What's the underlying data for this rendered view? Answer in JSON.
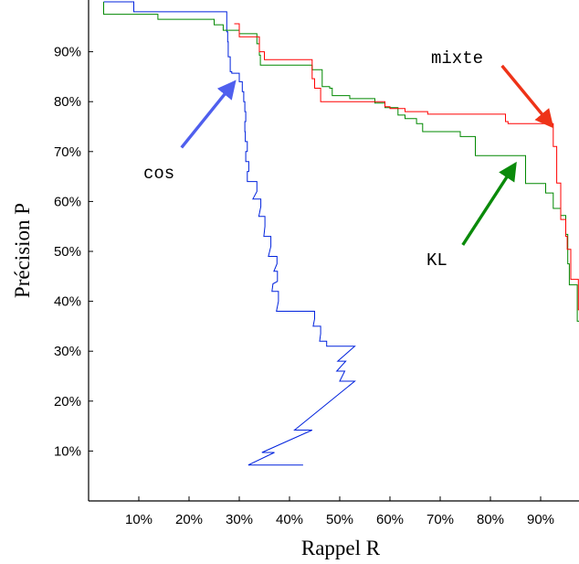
{
  "chart_data": {
    "type": "line",
    "title": "",
    "xlabel": "Rappel R",
    "ylabel": "Précision P",
    "xlim": [
      0,
      98
    ],
    "ylim": [
      0,
      100
    ],
    "xticks": [
      {
        "value": 10,
        "label": "10%"
      },
      {
        "value": 20,
        "label": "20%"
      },
      {
        "value": 30,
        "label": "30%"
      },
      {
        "value": 40,
        "label": "40%"
      },
      {
        "value": 50,
        "label": "50%"
      },
      {
        "value": 60,
        "label": "60%"
      },
      {
        "value": 70,
        "label": "70%"
      },
      {
        "value": 80,
        "label": "80%"
      },
      {
        "value": 90,
        "label": "90%"
      }
    ],
    "yticks": [
      {
        "value": 10,
        "label": "10%"
      },
      {
        "value": 20,
        "label": "20%"
      },
      {
        "value": 30,
        "label": "30%"
      },
      {
        "value": 40,
        "label": "40%"
      },
      {
        "value": 50,
        "label": "50%"
      },
      {
        "value": 60,
        "label": "60%"
      },
      {
        "value": 70,
        "label": "70%"
      },
      {
        "value": 80,
        "label": "80%"
      },
      {
        "value": 90,
        "label": "90%"
      }
    ],
    "grid": false,
    "legend": "none",
    "series": [
      {
        "name": "cos",
        "color": "#0022dd",
        "points": [
          [
            3,
            100
          ],
          [
            9,
            100
          ],
          [
            9,
            98
          ],
          [
            27.5,
            98
          ],
          [
            27.5,
            96
          ],
          [
            27.5,
            94
          ],
          [
            27.7,
            94
          ],
          [
            27.7,
            92
          ],
          [
            27.8,
            92
          ],
          [
            27.8,
            89
          ],
          [
            28.2,
            89
          ],
          [
            28.2,
            86
          ],
          [
            28.5,
            86
          ],
          [
            28.5,
            85.7
          ],
          [
            30,
            85.7
          ],
          [
            30,
            84
          ],
          [
            30.6,
            84
          ],
          [
            30.6,
            82
          ],
          [
            30.9,
            82
          ],
          [
            30.9,
            80
          ],
          [
            31.1,
            80
          ],
          [
            31.1,
            78
          ],
          [
            31.3,
            78
          ],
          [
            31.3,
            76
          ],
          [
            31.1,
            76
          ],
          [
            31.1,
            74
          ],
          [
            31.2,
            74
          ],
          [
            31.2,
            72
          ],
          [
            31.6,
            72
          ],
          [
            31.6,
            70
          ],
          [
            31.3,
            70
          ],
          [
            31.3,
            68
          ],
          [
            31.9,
            68
          ],
          [
            31.9,
            66
          ],
          [
            31.6,
            66
          ],
          [
            31.6,
            64
          ],
          [
            33.5,
            64
          ],
          [
            33.5,
            62
          ],
          [
            32.7,
            60.5
          ],
          [
            34.3,
            60.5
          ],
          [
            34.3,
            59
          ],
          [
            33.9,
            57
          ],
          [
            35.1,
            57
          ],
          [
            35.1,
            55
          ],
          [
            34.9,
            53
          ],
          [
            36.3,
            53
          ],
          [
            36.3,
            51
          ],
          [
            35.8,
            49
          ],
          [
            37.5,
            49
          ],
          [
            37.5,
            47.5
          ],
          [
            36.9,
            46
          ],
          [
            37.6,
            46
          ],
          [
            37.6,
            44
          ],
          [
            36.7,
            43.5
          ],
          [
            36.5,
            42
          ],
          [
            37.8,
            42
          ],
          [
            37.8,
            40
          ],
          [
            37.4,
            38
          ],
          [
            45,
            38
          ],
          [
            45,
            36.5
          ],
          [
            44.7,
            35
          ],
          [
            46.2,
            35
          ],
          [
            46.2,
            33.5
          ],
          [
            46,
            32
          ],
          [
            47.4,
            32
          ],
          [
            47.4,
            31
          ],
          [
            48.6,
            31
          ],
          [
            53,
            31
          ],
          [
            49.6,
            28
          ],
          [
            51.2,
            28
          ],
          [
            49.4,
            26
          ],
          [
            51,
            26
          ],
          [
            50,
            24
          ],
          [
            53,
            24
          ],
          [
            41,
            14.2
          ],
          [
            44.5,
            14.2
          ],
          [
            34.5,
            9.7
          ],
          [
            37,
            9.7
          ],
          [
            31.8,
            7.2
          ],
          [
            42.7,
            7.2
          ]
        ]
      },
      {
        "name": "KL",
        "color": "#008800",
        "points": [
          [
            3,
            100
          ],
          [
            3,
            97.5
          ],
          [
            13.8,
            97.5
          ],
          [
            13.8,
            96.5
          ],
          [
            25,
            96.5
          ],
          [
            25,
            95.4
          ],
          [
            26.8,
            95.4
          ],
          [
            26.8,
            94.3
          ],
          [
            30,
            94.3
          ],
          [
            30,
            93.6
          ],
          [
            33.5,
            93.6
          ],
          [
            33.5,
            91.6
          ],
          [
            34,
            91.6
          ],
          [
            34,
            89.3
          ],
          [
            34.2,
            89.3
          ],
          [
            34.2,
            87.3
          ],
          [
            44.5,
            87.3
          ],
          [
            44.5,
            86.4
          ],
          [
            46.5,
            86.4
          ],
          [
            46.5,
            84
          ],
          [
            46.5,
            83
          ],
          [
            48,
            83
          ],
          [
            48,
            82.7
          ],
          [
            48.5,
            82.7
          ],
          [
            48.5,
            81.2
          ],
          [
            52,
            81.2
          ],
          [
            52,
            80.6
          ],
          [
            57,
            80.6
          ],
          [
            57,
            79.7
          ],
          [
            59,
            79.7
          ],
          [
            59,
            78.8
          ],
          [
            61.6,
            78.8
          ],
          [
            61.6,
            77.3
          ],
          [
            63,
            77.3
          ],
          [
            63,
            76.6
          ],
          [
            65.3,
            76.6
          ],
          [
            65.3,
            75.6
          ],
          [
            66.5,
            75.6
          ],
          [
            66.5,
            74
          ],
          [
            74,
            74
          ],
          [
            74,
            73
          ],
          [
            77,
            73
          ],
          [
            77,
            69.2
          ],
          [
            87,
            69.2
          ],
          [
            87,
            63.6
          ],
          [
            91,
            63.6
          ],
          [
            91,
            61.7
          ],
          [
            92.5,
            61.7
          ],
          [
            92.5,
            58.6
          ],
          [
            94,
            58.6
          ],
          [
            94,
            57.2
          ],
          [
            95,
            57.2
          ],
          [
            95,
            53.4
          ],
          [
            95.4,
            53.4
          ],
          [
            95.4,
            47.5
          ],
          [
            95.7,
            47.5
          ],
          [
            95.7,
            43.3
          ],
          [
            97.3,
            43.3
          ],
          [
            97.3,
            36
          ],
          [
            98,
            36
          ]
        ]
      },
      {
        "name": "mixte",
        "color": "#ff0000",
        "points": [
          [
            29,
            95.6
          ],
          [
            30,
            95.6
          ],
          [
            30,
            93
          ],
          [
            34,
            93
          ],
          [
            34,
            90
          ],
          [
            35,
            90
          ],
          [
            35,
            88.4
          ],
          [
            44.5,
            88.4
          ],
          [
            44.5,
            84.6
          ],
          [
            45,
            84.6
          ],
          [
            45,
            82.7
          ],
          [
            46.2,
            82.7
          ],
          [
            46.2,
            80
          ],
          [
            59,
            80
          ],
          [
            59,
            79
          ],
          [
            60,
            79
          ],
          [
            60,
            78.6
          ],
          [
            63,
            78.6
          ],
          [
            63,
            78
          ],
          [
            67.5,
            78
          ],
          [
            67.5,
            77.5
          ],
          [
            83,
            77.5
          ],
          [
            83,
            76
          ],
          [
            83.5,
            76
          ],
          [
            83.5,
            75.6
          ],
          [
            92.5,
            75.6
          ],
          [
            92.5,
            71
          ],
          [
            93.2,
            71
          ],
          [
            93.2,
            63.7
          ],
          [
            94,
            63.7
          ],
          [
            94,
            56.4
          ],
          [
            95,
            56.4
          ],
          [
            95,
            53
          ],
          [
            95.3,
            53
          ],
          [
            95.3,
            50.4
          ],
          [
            96,
            50.4
          ],
          [
            96,
            44.4
          ],
          [
            97.5,
            44.4
          ],
          [
            97.5,
            38.3
          ],
          [
            98,
            38.3
          ]
        ]
      }
    ],
    "annotations": [
      {
        "text": "cos",
        "color": "#4f5fee",
        "arrow_from": [
          18.5,
          70.8
        ],
        "arrow_to": [
          28.3,
          83
        ]
      },
      {
        "text": "KL",
        "color": "#0a8a0a",
        "arrow_from": [
          74.5,
          51.3
        ],
        "arrow_to": [
          84.3,
          66.5
        ]
      },
      {
        "text": "mixte",
        "color": "#ee3318",
        "arrow_from": [
          82.3,
          87.2
        ],
        "arrow_to": [
          91.5,
          76
        ]
      }
    ]
  }
}
